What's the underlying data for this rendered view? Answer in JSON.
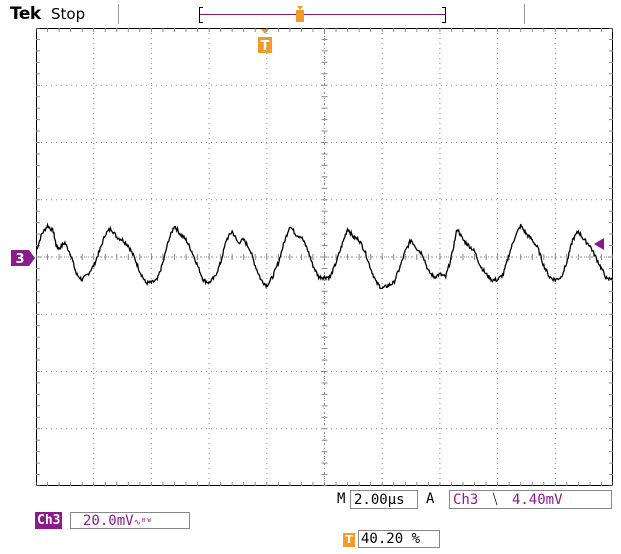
{
  "header": {
    "brand": "Tek",
    "status": "Stop"
  },
  "channel_marker": "3",
  "trigger_marker": "T",
  "readouts": {
    "mode_label": "M",
    "timebase": "2.00µs",
    "trigger_mode": "A",
    "trigger_source": "Ch3",
    "trigger_slope_icon": "falling-edge-icon",
    "trigger_slope_glyph": "⧹",
    "trigger_level": "4.40mV",
    "channel_tag": "Ch3",
    "channel_scale": "20.0mV",
    "channel_coupling": "∿ᴮᵂ",
    "trigger_position_icon": "T",
    "trigger_position": "40.20 %"
  },
  "colors": {
    "channel": "#8b1a8b",
    "trigger": "#f39a2a",
    "trace": "#000000",
    "grid": "#888888"
  },
  "chart_data": {
    "type": "line",
    "title": "",
    "xlabel": "",
    "ylabel": "",
    "x_divisions": 10,
    "y_divisions": 8,
    "grid": true,
    "xlim": [
      0,
      10
    ],
    "ylim": [
      -4,
      4
    ],
    "series": [
      {
        "name": "",
        "x": [
          0,
          0.1,
          0.2,
          0.3,
          0.35,
          0.4,
          0.5,
          0.6,
          0.7,
          0.8,
          0.9,
          1.0,
          1.1,
          1.2,
          1.3,
          1.4,
          1.5,
          1.6,
          1.7,
          1.8,
          1.9,
          2.0,
          2.1,
          2.2,
          2.3,
          2.4,
          2.5,
          2.6,
          2.7,
          2.8,
          2.9,
          3.0,
          3.1,
          3.2,
          3.3,
          3.4,
          3.5,
          3.6,
          3.7,
          3.8,
          3.9,
          4.0,
          4.1,
          4.2,
          4.3,
          4.4,
          4.5,
          4.6,
          4.7,
          4.8,
          4.9,
          5.0,
          5.1,
          5.2,
          5.3,
          5.4,
          5.5,
          5.6,
          5.7,
          5.8,
          5.9,
          6.0,
          6.1,
          6.2,
          6.3,
          6.4,
          6.5,
          6.6,
          6.7,
          6.8,
          6.9,
          7.0,
          7.1,
          7.2,
          7.3,
          7.4,
          7.5,
          7.6,
          7.7,
          7.8,
          7.9,
          8.0,
          8.1,
          8.2,
          8.3,
          8.4,
          8.5,
          8.6,
          8.7,
          8.8,
          8.9,
          9.0,
          9.1,
          9.2,
          9.3,
          9.4,
          9.5,
          9.6,
          9.7,
          9.8,
          9.9,
          10.0
        ],
        "values": [
          0.1,
          0.4,
          0.55,
          0.45,
          0.2,
          0.15,
          0.25,
          0.05,
          -0.3,
          -0.4,
          -0.3,
          -0.15,
          0.1,
          0.4,
          0.5,
          0.35,
          0.3,
          0.2,
          0.0,
          -0.25,
          -0.45,
          -0.45,
          -0.4,
          -0.1,
          0.3,
          0.55,
          0.4,
          0.3,
          0.1,
          -0.15,
          -0.4,
          -0.45,
          -0.35,
          -0.1,
          0.3,
          0.45,
          0.25,
          0.3,
          0.15,
          -0.15,
          -0.4,
          -0.5,
          -0.35,
          -0.1,
          0.25,
          0.55,
          0.4,
          0.35,
          0.15,
          -0.15,
          -0.35,
          -0.35,
          -0.35,
          -0.1,
          0.2,
          0.5,
          0.35,
          0.3,
          0.1,
          -0.2,
          -0.45,
          -0.55,
          -0.5,
          -0.45,
          -0.2,
          0.1,
          0.3,
          0.15,
          0.05,
          -0.25,
          -0.35,
          -0.3,
          -0.35,
          0.0,
          0.5,
          0.3,
          0.2,
          0.1,
          -0.15,
          -0.3,
          -0.4,
          -0.4,
          -0.3,
          0.05,
          0.35,
          0.55,
          0.4,
          0.3,
          0.15,
          -0.15,
          -0.35,
          -0.4,
          -0.35,
          -0.1,
          0.3,
          0.45,
          0.3,
          0.2,
          0.0,
          -0.2,
          -0.4,
          -0.35
        ]
      }
    ]
  }
}
